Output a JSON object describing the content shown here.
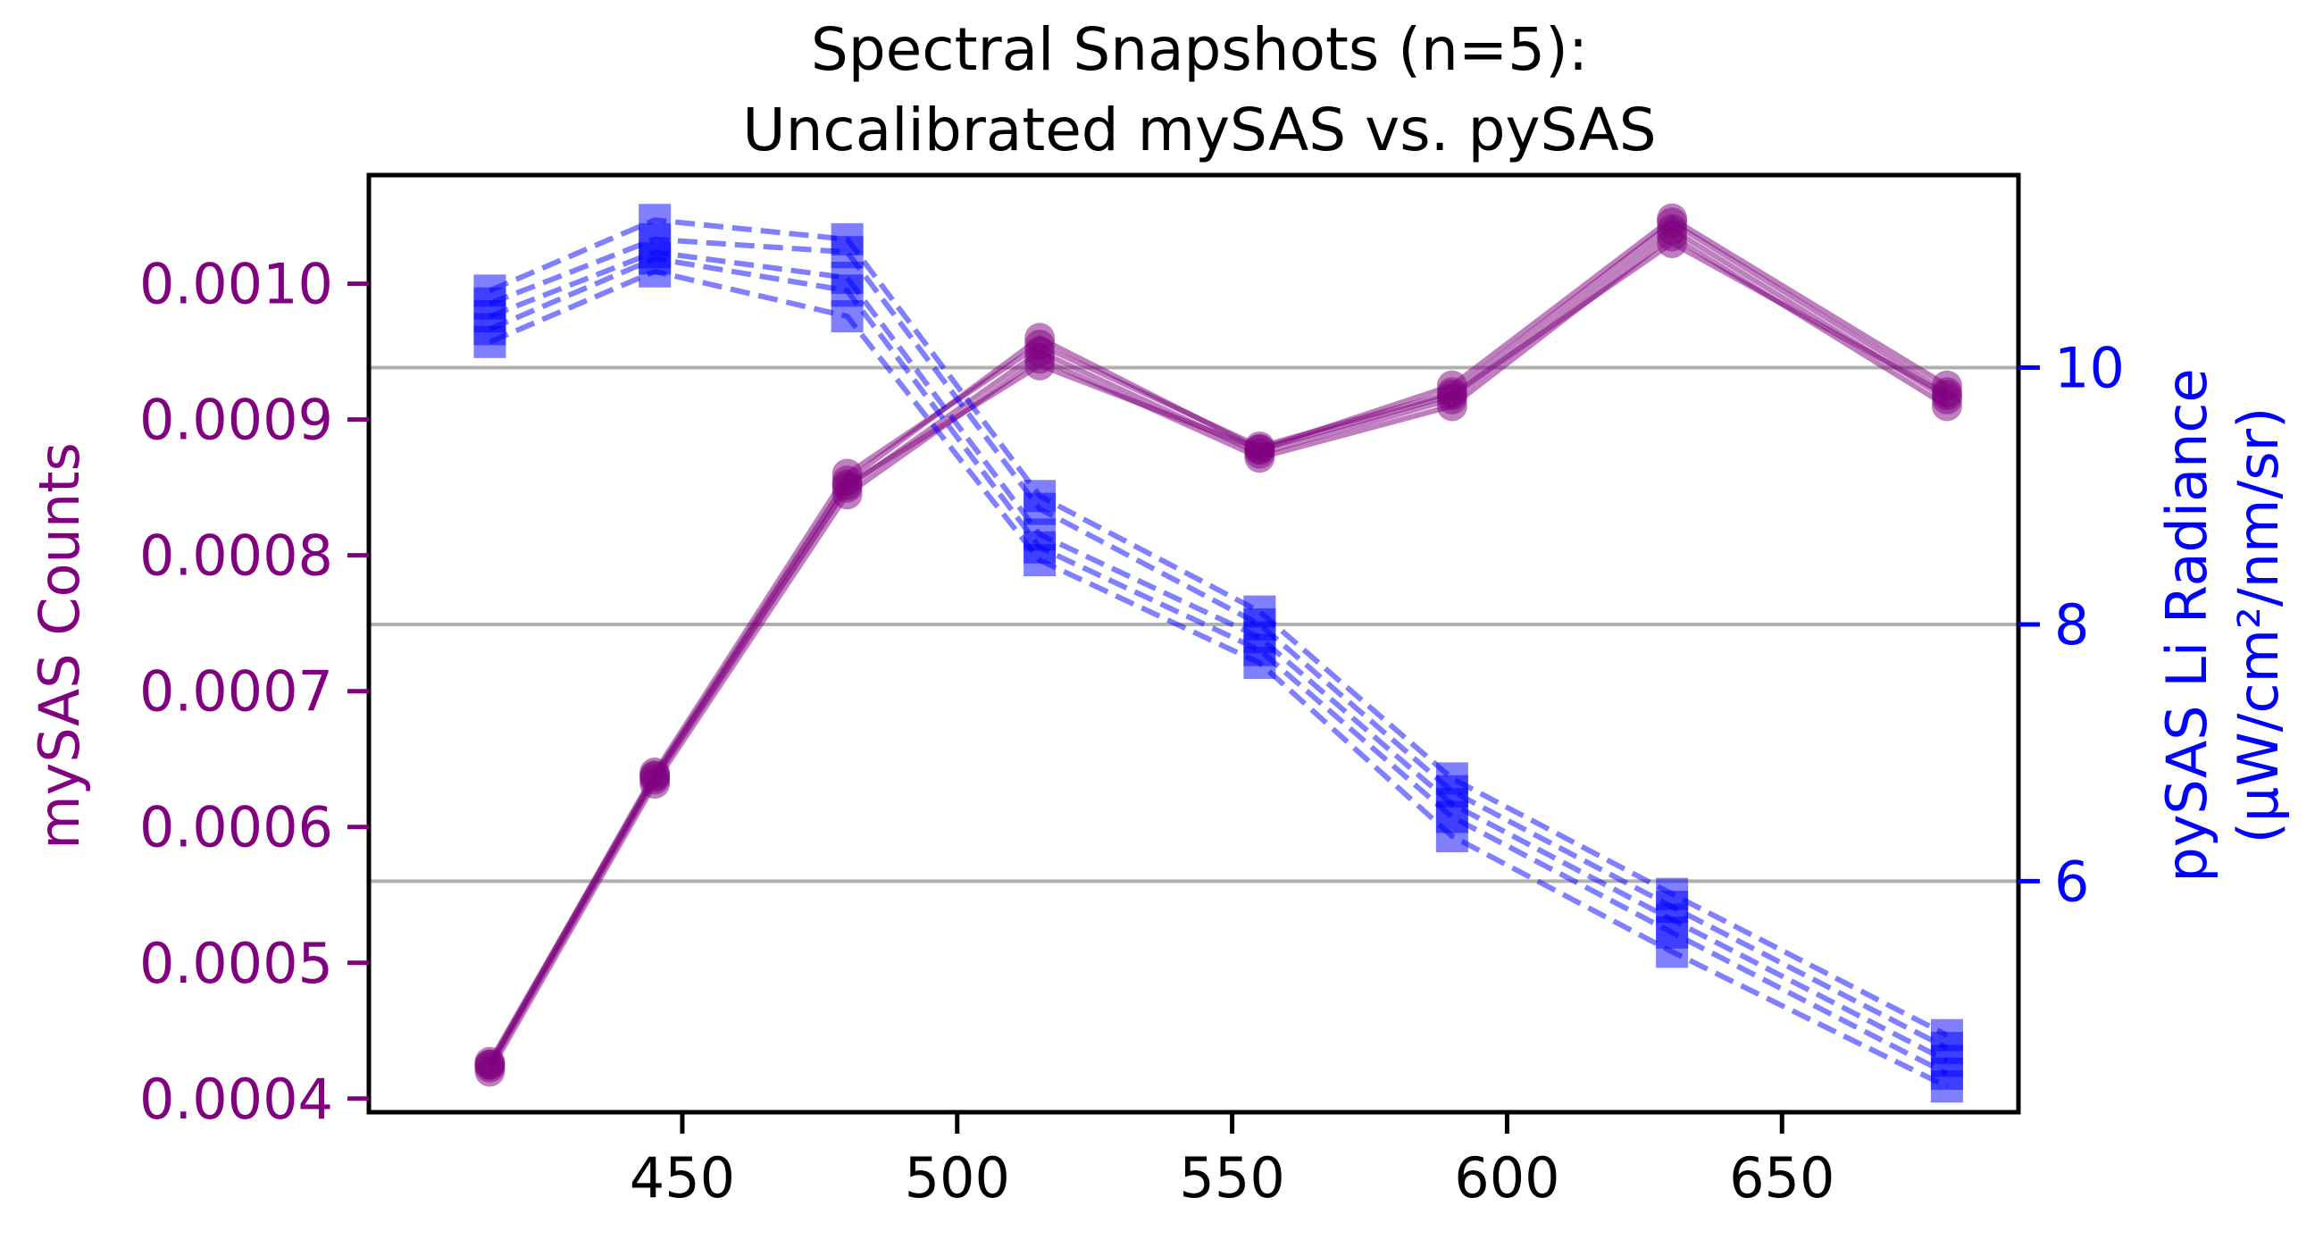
{
  "chart_data": {
    "type": "line",
    "title_line1": "Spectral Snapshots (n=5):",
    "title_line2": "Uncalibrated mySAS vs. pySAS",
    "xlabel": "",
    "ylabel_left": "mySAS Counts",
    "ylabel_right_line1": "pySAS Li Radiance",
    "ylabel_right_line2": "(µW/cm²/nm/sr)",
    "x": [
      415,
      445,
      480,
      515,
      555,
      590,
      630,
      680
    ],
    "x_ticks": [
      450,
      500,
      550,
      600,
      650
    ],
    "xlim": [
      393,
      693
    ],
    "y_left_ticks": [
      0.0004,
      0.0005,
      0.0006,
      0.0007,
      0.0008,
      0.0009,
      0.001
    ],
    "y_left_tick_labels": [
      "0.0004",
      "0.0005",
      "0.0006",
      "0.0007",
      "0.0008",
      "0.0009",
      "0.0010"
    ],
    "ylim_left": [
      0.00039,
      0.00108
    ],
    "y_right_ticks": [
      6,
      8,
      10
    ],
    "y_right_tick_labels": [
      "6",
      "8",
      "10"
    ],
    "ylim_right": [
      4.2,
      11.5
    ],
    "grid": "horizontal gridlines at right-axis ticks",
    "colors": {
      "left": "#800080",
      "right": "#0000ff",
      "grid": "#b0b0b0"
    },
    "series_left": [
      {
        "values": [
          0.000425,
          0.00064,
          0.00086,
          0.000955,
          0.00088,
          0.00092,
          0.001045,
          0.00092
        ]
      },
      {
        "values": [
          0.000427,
          0.000638,
          0.000855,
          0.00096,
          0.000878,
          0.000925,
          0.001048,
          0.000925
        ]
      },
      {
        "values": [
          0.000423,
          0.000635,
          0.00085,
          0.00095,
          0.000875,
          0.000915,
          0.00104,
          0.000915
        ]
      },
      {
        "values": [
          0.00042,
          0.000632,
          0.000845,
          0.000945,
          0.000872,
          0.00091,
          0.001035,
          0.00091
        ]
      },
      {
        "values": [
          0.000425,
          0.000637,
          0.000852,
          0.00094,
          0.000878,
          0.000918,
          0.00103,
          0.000918
        ]
      }
    ],
    "series_right": [
      {
        "values": [
          10.6,
          11.15,
          11.0,
          9.0,
          8.1,
          6.8,
          5.9,
          4.8
        ]
      },
      {
        "values": [
          10.5,
          11.0,
          10.9,
          8.9,
          8.0,
          6.7,
          5.8,
          4.7
        ]
      },
      {
        "values": [
          10.4,
          10.9,
          10.7,
          8.7,
          7.9,
          6.6,
          5.7,
          4.6
        ]
      },
      {
        "values": [
          10.3,
          10.85,
          10.6,
          8.6,
          7.8,
          6.5,
          5.6,
          4.5
        ]
      },
      {
        "values": [
          10.2,
          10.75,
          10.4,
          8.5,
          7.7,
          6.35,
          5.45,
          4.4
        ]
      }
    ]
  }
}
